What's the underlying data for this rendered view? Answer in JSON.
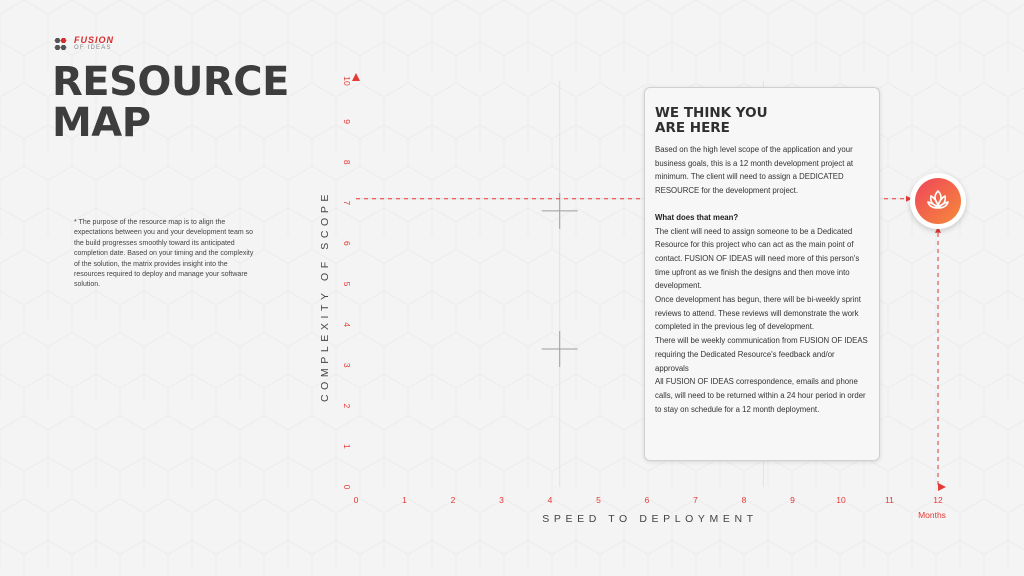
{
  "brand": {
    "name": "FUSION",
    "tagline": "OF IDEAS",
    "accent_color": "#e02d2d"
  },
  "page": {
    "title_line1": "RESOURCE",
    "title_line2": "MAP",
    "footnote": "* The purpose of the resource map is to align the expectations between you and your development team so the build progresses smoothly toward its anticipated completion date. Based on your timing and the complexity of the solution, the matrix provides insight into the resources required to deploy and manage your software solution."
  },
  "chart_data": {
    "type": "scatter",
    "xlabel": "SPEED TO DEPLOYMENT",
    "ylabel": "COMPLEXITY OF SCOPE",
    "x_unit_label": "Months",
    "xlim": [
      0,
      12
    ],
    "ylim": [
      0,
      10
    ],
    "x_ticks": [
      "0",
      "1",
      "2",
      "3",
      "4",
      "5",
      "6",
      "7",
      "8",
      "9",
      "10",
      "11",
      "12"
    ],
    "y_ticks": [
      "0",
      "1",
      "2",
      "3",
      "4",
      "5",
      "6",
      "7",
      "8",
      "9",
      "10"
    ],
    "grid": true,
    "points": [
      {
        "x": 12,
        "y": 7.1
      }
    ],
    "crosshair_markers": [
      {
        "x": 4.2,
        "y": 6.8
      },
      {
        "x": 4.2,
        "y": 3.4
      }
    ],
    "axis_color": "#e53935"
  },
  "card": {
    "title_line1": "WE THINK YOU",
    "title_line2": "ARE HERE",
    "intro": "Based on the high level scope of the application and your business goals, this is a 12 month development project at minimum. The client will need to assign a DEDICATED RESOURCE for the development project.",
    "heading": "What does that mean?",
    "para1": "The client will need to assign someone to be a Dedicated Resource for this project who can act as the main point of contact. FUSION OF IDEAS will need more of this person's time upfront as we finish the designs and then move into development.",
    "para2": "Once development has begun, there will be bi-weekly sprint reviews to attend. These reviews will demonstrate the work completed in the previous leg of development.",
    "para3": "There will be weekly communication from FUSION OF IDEAS requiring the Dedicated Resource's feedback and/or approvals",
    "para4": "All FUSION OF IDEAS correspondence, emails and phone calls, will need to be returned within a 24 hour period in order to stay on schedule for a 12 month deployment."
  },
  "marker": {
    "icon": "lotus-icon"
  }
}
